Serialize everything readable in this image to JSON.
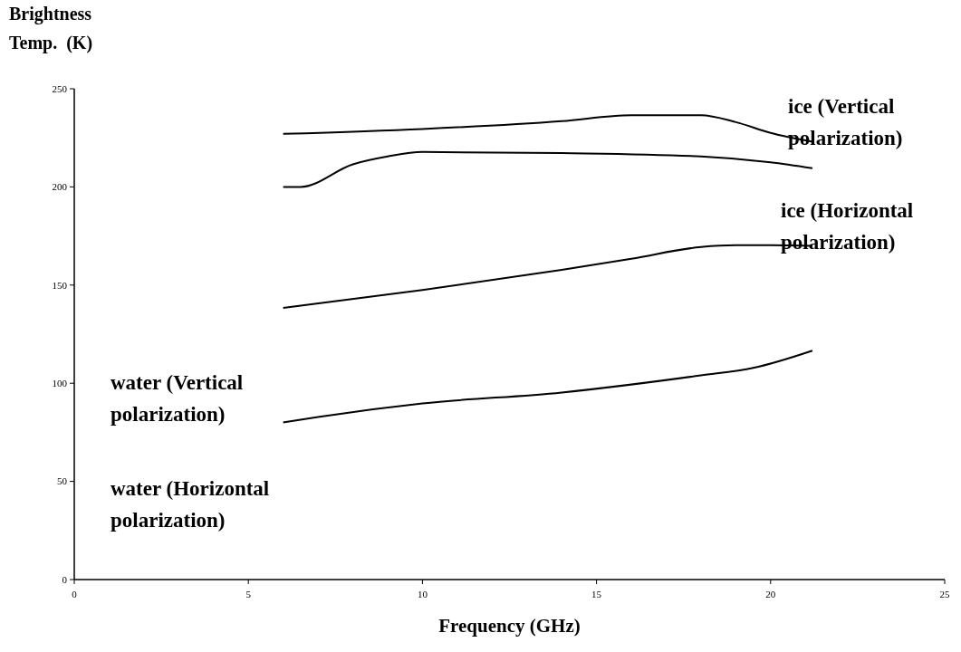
{
  "chart_data": {
    "type": "line",
    "ylabel": "Brightness\nTemp.  (K)",
    "xlabel": "Frequency (GHz)",
    "xlim": [
      0,
      25
    ],
    "xticks": [
      0,
      5,
      10,
      15,
      20,
      25
    ],
    "ylim": [
      0,
      250
    ],
    "yticks": [
      0,
      50,
      100,
      150,
      200,
      250
    ],
    "grid": false,
    "series": [
      {
        "color": "#000000",
        "x": [
          6,
          10,
          14,
          16,
          18,
          19,
          20,
          21.2
        ],
        "values": [
          227,
          229.5,
          233.5,
          236.5,
          236.5,
          233,
          227.5,
          223
        ]
      },
      {
        "color": "#000000",
        "x": [
          6,
          6.5,
          8,
          9,
          10,
          14,
          18,
          20,
          21.2
        ],
        "values": [
          200,
          200,
          211.5,
          215.5,
          217.8,
          217.2,
          215.5,
          212.5,
          209.5
        ]
      },
      {
        "color": "#000000",
        "x": [
          6,
          10,
          14,
          16,
          18,
          19,
          20,
          21.2
        ],
        "values": [
          138.4,
          147.5,
          157.8,
          163.4,
          169.4,
          170.3,
          170.3,
          170
        ]
      },
      {
        "color": "#000000",
        "x": [
          6,
          7,
          10,
          14,
          18,
          19.5,
          21.2
        ],
        "values": [
          80,
          82.8,
          89.7,
          95.3,
          104,
          107.8,
          116.6
        ]
      }
    ],
    "annotations": [
      "ice (Vertical\npolarization)",
      "ice (Horizontal\npolarization)",
      "water (Vertical\npolarization)",
      "water (Horizontal\npolarization)"
    ]
  }
}
